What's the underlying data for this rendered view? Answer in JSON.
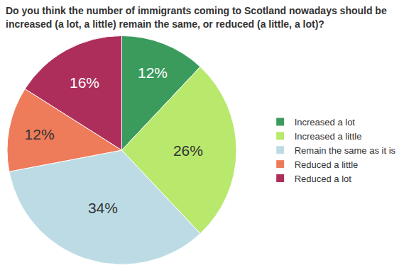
{
  "chart_data": {
    "type": "pie",
    "title": "Do you think the number of immigrants coming to Scotland nowadays should be increased (a lot, a little) remain the same, or reduced (a little, a lot)?",
    "categories": [
      "Increased a lot",
      "Increased a little",
      "Remain the same as it is",
      "Reduced a little",
      "Reduced a lot"
    ],
    "values": [
      12,
      26,
      34,
      12,
      16
    ],
    "value_labels": [
      "12%",
      "26%",
      "34%",
      "12%",
      "16%"
    ],
    "colors": [
      "#3a9b5c",
      "#b8e86c",
      "#bddbe5",
      "#ee7b5a",
      "#ad2e5b"
    ],
    "data_labels": true,
    "legend": "right"
  }
}
